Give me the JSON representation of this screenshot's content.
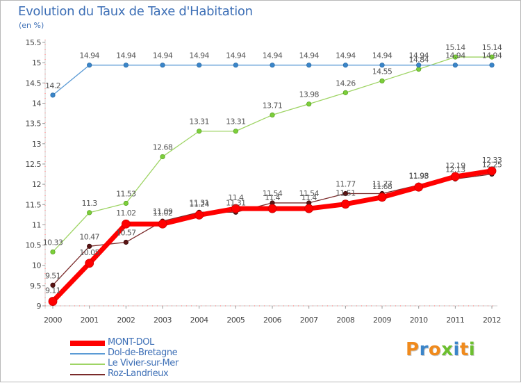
{
  "title": "Evolution du Taux de Taxe d'Habitation",
  "subtitle": "(en %)",
  "logo": {
    "text": "Proxiti",
    "letter_colors": [
      "#f08a1c",
      "#3a85c9",
      "#f08a1c",
      "#6cbf2f",
      "#3a85c9",
      "#f08a1c",
      "#6cbf2f"
    ]
  },
  "chart_data": {
    "type": "line",
    "title": "Evolution du Taux de Taxe d'Habitation",
    "ylabel": "(en %)",
    "xlabel": "",
    "x": [
      "2000",
      "2001",
      "2002",
      "2003",
      "2004",
      "2005",
      "2006",
      "2007",
      "2008",
      "2009",
      "2010",
      "2011",
      "2012"
    ],
    "ylim": [
      9,
      15.5
    ],
    "yticks": [
      "9",
      "9.5",
      "10",
      "10.5",
      "11",
      "11.5",
      "12",
      "12.5",
      "13",
      "13.5",
      "14",
      "14.5",
      "15",
      "15.5"
    ],
    "grid": false,
    "legend_position": "bottom-left",
    "series": [
      {
        "name": "MONT-DOL",
        "color": "#ff0000",
        "values": [
          9.11,
          10.05,
          11.02,
          11.02,
          11.24,
          11.4,
          11.4,
          11.4,
          11.51,
          11.68,
          11.93,
          12.19,
          12.33
        ]
      },
      {
        "name": "Dol-de-Bretagne",
        "color": "#5b9bd5",
        "values": [
          14.2,
          14.94,
          14.94,
          14.94,
          14.94,
          14.94,
          14.94,
          14.94,
          14.94,
          14.94,
          14.94,
          14.94,
          14.94
        ]
      },
      {
        "name": "Le Vivier-sur-Mer",
        "color": "#9ed464",
        "values": [
          10.33,
          11.3,
          11.53,
          12.68,
          13.31,
          13.31,
          13.71,
          13.98,
          14.26,
          14.55,
          14.84,
          15.14,
          15.14
        ]
      },
      {
        "name": "Roz-Landrieux",
        "color": "#7a2a2a",
        "values": [
          9.51,
          10.47,
          10.57,
          11.09,
          11.31,
          11.31,
          11.54,
          11.54,
          11.77,
          11.77,
          11.98,
          12.13,
          12.25
        ]
      }
    ]
  }
}
